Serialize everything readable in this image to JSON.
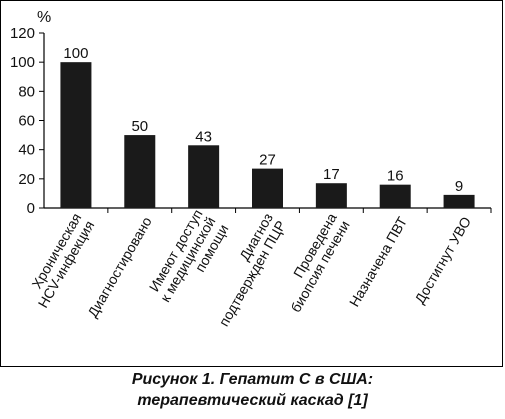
{
  "chart_data": {
    "type": "bar",
    "y_unit_label": "%",
    "categories": [
      [
        "Хроническая",
        "HCV-инфекция"
      ],
      [
        "Диагностировано"
      ],
      [
        "Имеют доступ",
        "к медицинской",
        "помощи"
      ],
      [
        "Диагноз",
        "подтвержден ПЦР"
      ],
      [
        "Проведена",
        "биопсия печени"
      ],
      [
        "Назначена ПВТ"
      ],
      [
        "Достигнут УВО"
      ]
    ],
    "values": [
      100,
      50,
      43,
      27,
      17,
      16,
      9
    ],
    "data_labels": [
      "100",
      "50",
      "43",
      "27",
      "17",
      "16",
      "9"
    ],
    "ylim": [
      0,
      120
    ],
    "yticks": [
      0,
      20,
      40,
      60,
      80,
      100,
      120
    ],
    "bar_color": "#1a1a1a",
    "grid": false,
    "legend": "none"
  },
  "caption": {
    "line1": "Рисунок 1.  Гепатит С в США:",
    "line2": "терапевтический каскад [1]"
  }
}
